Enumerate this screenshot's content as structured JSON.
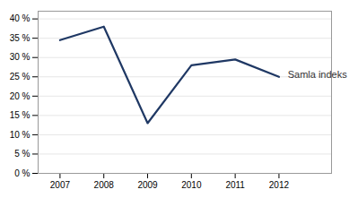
{
  "chart_data": {
    "type": "line",
    "x": [
      2007,
      2008,
      2009,
      2010,
      2011,
      2012
    ],
    "values": [
      34.5,
      38.0,
      13.0,
      28.0,
      29.5,
      25.0
    ],
    "color": "#1F3864",
    "xlim": [
      2006.5,
      2013.2
    ],
    "xticks": [
      2007,
      2008,
      2009,
      2010,
      2011,
      2012
    ],
    "ylim": [
      0,
      42
    ],
    "yticks": [
      {
        "value": 0,
        "label": "0 %"
      },
      {
        "value": 5,
        "label": "5 %"
      },
      {
        "value": 10,
        "label": "10 %"
      },
      {
        "value": 15,
        "label": "15 %"
      },
      {
        "value": 20,
        "label": "20 %"
      },
      {
        "value": 25,
        "label": "25 %"
      },
      {
        "value": 30,
        "label": "30 %"
      },
      {
        "value": 35,
        "label": "35 %"
      },
      {
        "value": 40,
        "label": "40 %"
      }
    ],
    "grid": true,
    "annotations": [
      {
        "text": "Samla indeks",
        "x": 2012.2,
        "y": 25.5
      }
    ]
  }
}
